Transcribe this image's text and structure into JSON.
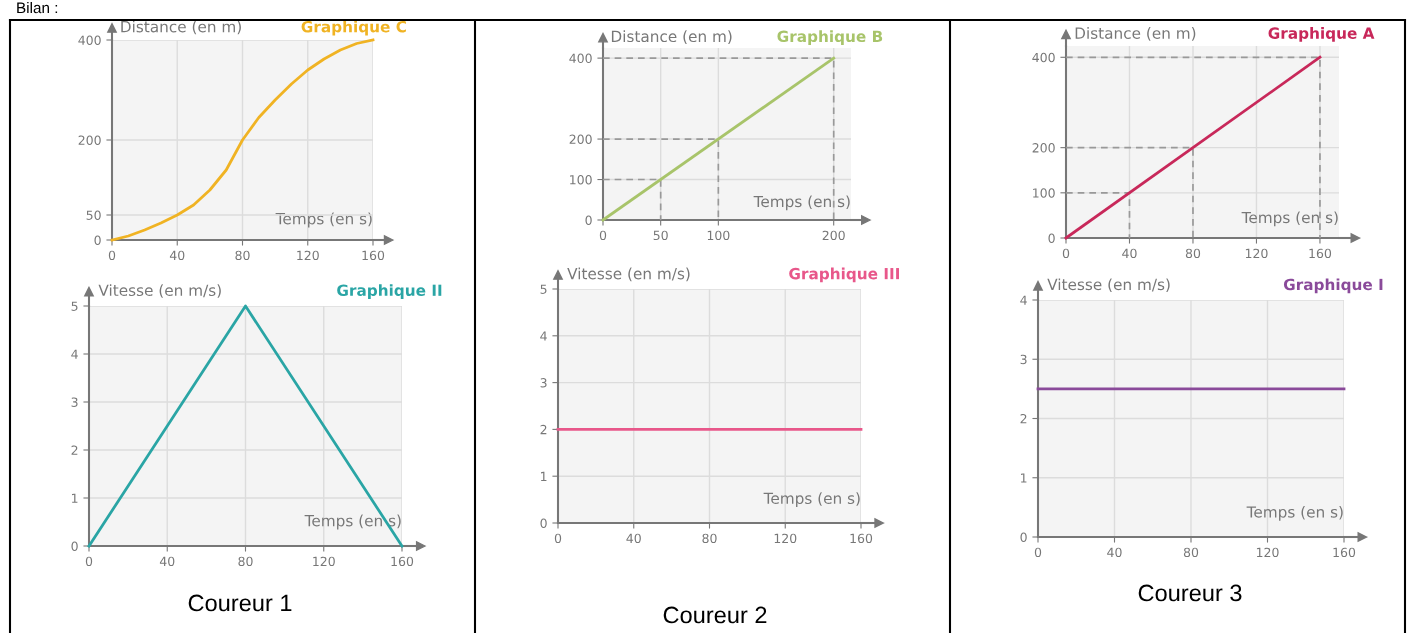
{
  "chart_data": [
    {
      "type": "line",
      "title": "Graphique C",
      "ylabel": "Distance (en m)",
      "xlabel": "Temps (en s)",
      "annotations": [
        "Bilan :"
      ],
      "xlim": [
        0,
        160
      ],
      "ylim": [
        0,
        400
      ],
      "xticks": [
        0,
        40,
        80,
        120,
        160
      ],
      "yticks": [
        0,
        50,
        200,
        400
      ],
      "grid": true,
      "legend": false,
      "marker": "none",
      "series": [
        {
          "color": "#f0b323",
          "line_style": "solid",
          "x": [
            0,
            10,
            20,
            30,
            40,
            50,
            60,
            70,
            80,
            90,
            100,
            110,
            120,
            130,
            140,
            150,
            160
          ],
          "values": [
            0,
            8,
            20,
            34,
            50,
            70,
            100,
            140,
            200,
            245,
            280,
            312,
            340,
            362,
            380,
            393,
            400
          ]
        }
      ]
    },
    {
      "type": "line",
      "title": "Graphique B",
      "ylabel": "Distance (en m)",
      "xlabel": "Temps (en s)",
      "xlim": [
        0,
        215
      ],
      "ylim": [
        0,
        425
      ],
      "xticks": [
        0,
        50,
        100,
        200
      ],
      "yticks": [
        0,
        100,
        200,
        400
      ],
      "grid": true,
      "legend": false,
      "marker": "none",
      "series": [
        {
          "color": "#999999",
          "line_style": "dashed",
          "x": [
            0,
            50,
            50
          ],
          "values": [
            100,
            100,
            0
          ]
        },
        {
          "color": "#999999",
          "line_style": "dashed",
          "x": [
            0,
            100,
            100
          ],
          "values": [
            200,
            200,
            0
          ]
        },
        {
          "color": "#999999",
          "line_style": "dashed",
          "x": [
            0,
            200,
            200
          ],
          "values": [
            400,
            400,
            0
          ]
        },
        {
          "color": "#a8c46a",
          "line_style": "solid",
          "x": [
            0,
            200
          ],
          "values": [
            0,
            400
          ]
        }
      ]
    },
    {
      "type": "line",
      "title": "Graphique A",
      "ylabel": "Distance (en m)",
      "xlabel": "Temps (en s)",
      "xlim": [
        0,
        172
      ],
      "ylim": [
        0,
        425
      ],
      "xticks": [
        0,
        40,
        80,
        120,
        160
      ],
      "yticks": [
        0,
        100,
        200,
        400
      ],
      "grid": true,
      "legend": false,
      "marker": "none",
      "series": [
        {
          "color": "#999999",
          "line_style": "dashed",
          "x": [
            0,
            40,
            40
          ],
          "values": [
            100,
            100,
            0
          ]
        },
        {
          "color": "#999999",
          "line_style": "dashed",
          "x": [
            0,
            80,
            80
          ],
          "values": [
            200,
            200,
            0
          ]
        },
        {
          "color": "#999999",
          "line_style": "dashed",
          "x": [
            0,
            160,
            160
          ],
          "values": [
            400,
            400,
            0
          ]
        },
        {
          "color": "#c8285a",
          "line_style": "solid",
          "x": [
            0,
            160
          ],
          "values": [
            0,
            400
          ]
        }
      ]
    },
    {
      "type": "line",
      "title": "Graphique II",
      "ylabel": "Vitesse (en m/s)",
      "xlabel": "Temps (en s)",
      "annotations": [
        "Coureur 1"
      ],
      "xlim": [
        0,
        160
      ],
      "ylim": [
        0,
        5
      ],
      "xticks": [
        0,
        40,
        80,
        120,
        160
      ],
      "yticks": [
        0,
        1,
        2,
        3,
        4,
        5
      ],
      "grid": true,
      "legend": false,
      "marker": "none",
      "series": [
        {
          "color": "#2aa5a5",
          "line_style": "solid",
          "x": [
            0,
            80,
            160
          ],
          "values": [
            0,
            5,
            0
          ]
        }
      ]
    },
    {
      "type": "line",
      "title": "Graphique III",
      "ylabel": "Vitesse (en m/s)",
      "xlabel": "Temps (en s)",
      "annotations": [
        "Coureur 2"
      ],
      "xlim": [
        0,
        160
      ],
      "ylim": [
        0,
        5
      ],
      "xticks": [
        0,
        40,
        80,
        120,
        160
      ],
      "yticks": [
        0,
        1,
        2,
        3,
        4,
        5
      ],
      "grid": true,
      "legend": false,
      "marker": "none",
      "series": [
        {
          "color": "#e8578a",
          "line_style": "solid",
          "x": [
            0,
            160
          ],
          "values": [
            2,
            2
          ]
        }
      ]
    },
    {
      "type": "line",
      "title": "Graphique I",
      "ylabel": "Vitesse (en m/s)",
      "xlabel": "Temps (en s)",
      "annotations": [
        "Coureur 3"
      ],
      "xlim": [
        0,
        160
      ],
      "ylim": [
        0,
        4
      ],
      "xticks": [
        0,
        40,
        80,
        120,
        160
      ],
      "yticks": [
        0,
        1,
        2,
        3,
        4
      ],
      "grid": true,
      "legend": false,
      "marker": "none",
      "series": [
        {
          "color": "#8a4a9a",
          "line_style": "solid",
          "x": [
            0,
            160
          ],
          "values": [
            2.5,
            2.5
          ]
        }
      ]
    }
  ]
}
